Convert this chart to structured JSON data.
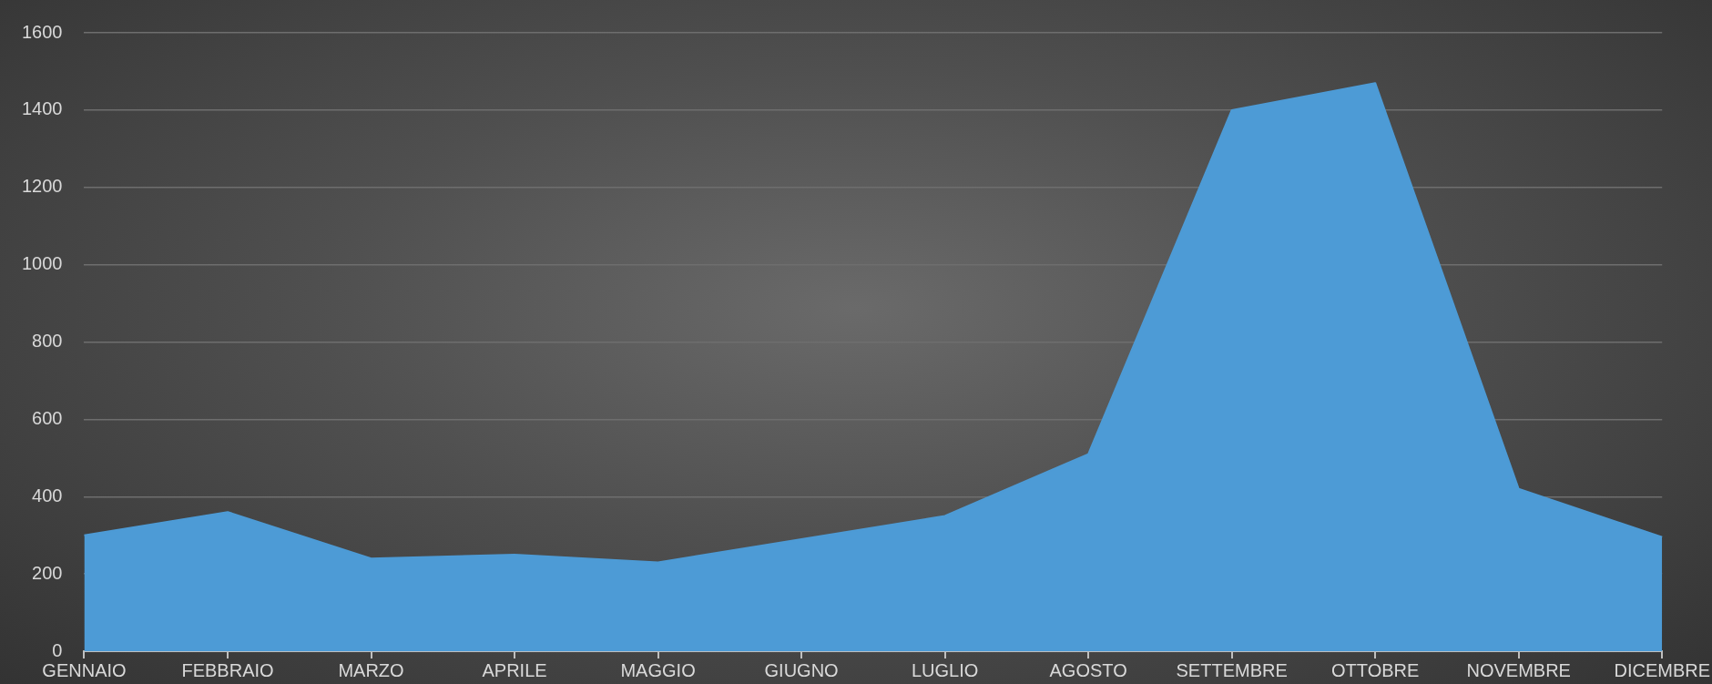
{
  "chart_data": {
    "type": "area",
    "categories": [
      "GENNAIO",
      "FEBBRAIO",
      "MARZO",
      "APRILE",
      "MAGGIO",
      "GIUGNO",
      "LUGLIO",
      "AGOSTO",
      "SETTEMBRE",
      "OTTOBRE",
      "NOVEMBRE",
      "DICEMBRE"
    ],
    "values": [
      300,
      360,
      240,
      250,
      230,
      290,
      350,
      510,
      1400,
      1470,
      420,
      295
    ],
    "color": "#4d9bd6",
    "ylim": [
      0,
      1600
    ],
    "yticks": [
      0,
      200,
      400,
      600,
      800,
      1000,
      1200,
      1400,
      1600
    ],
    "grid": "y"
  }
}
